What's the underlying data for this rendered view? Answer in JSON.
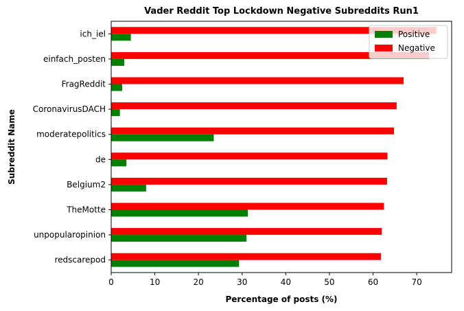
{
  "chart_data": {
    "type": "bar",
    "orientation": "horizontal",
    "title": "Vader Reddit Top Lockdown Negative Subreddits Run1",
    "xlabel": "Percentage of posts (%)",
    "ylabel": "Subreddit Name",
    "xlim": [
      0,
      78
    ],
    "xticks": [
      0,
      10,
      20,
      30,
      40,
      50,
      60,
      70
    ],
    "grid": false,
    "legend_position": "top-right",
    "categories": [
      "ich_iel",
      "einfach_posten",
      "FragReddit",
      "CoronavirusDACH",
      "moderatepolitics",
      "de",
      "Belgium2",
      "TheMotte",
      "unpopularopinion",
      "redscarepod"
    ],
    "series": [
      {
        "name": "Positive",
        "color": "#008000",
        "values": [
          4.5,
          3.0,
          2.5,
          2.0,
          23.5,
          3.5,
          8.0,
          31.3,
          31.0,
          29.3
        ]
      },
      {
        "name": "Negative",
        "color": "#ff0000",
        "values": [
          74.5,
          72.8,
          67.0,
          65.4,
          64.8,
          63.3,
          63.2,
          62.5,
          62.0,
          61.8
        ]
      }
    ]
  }
}
